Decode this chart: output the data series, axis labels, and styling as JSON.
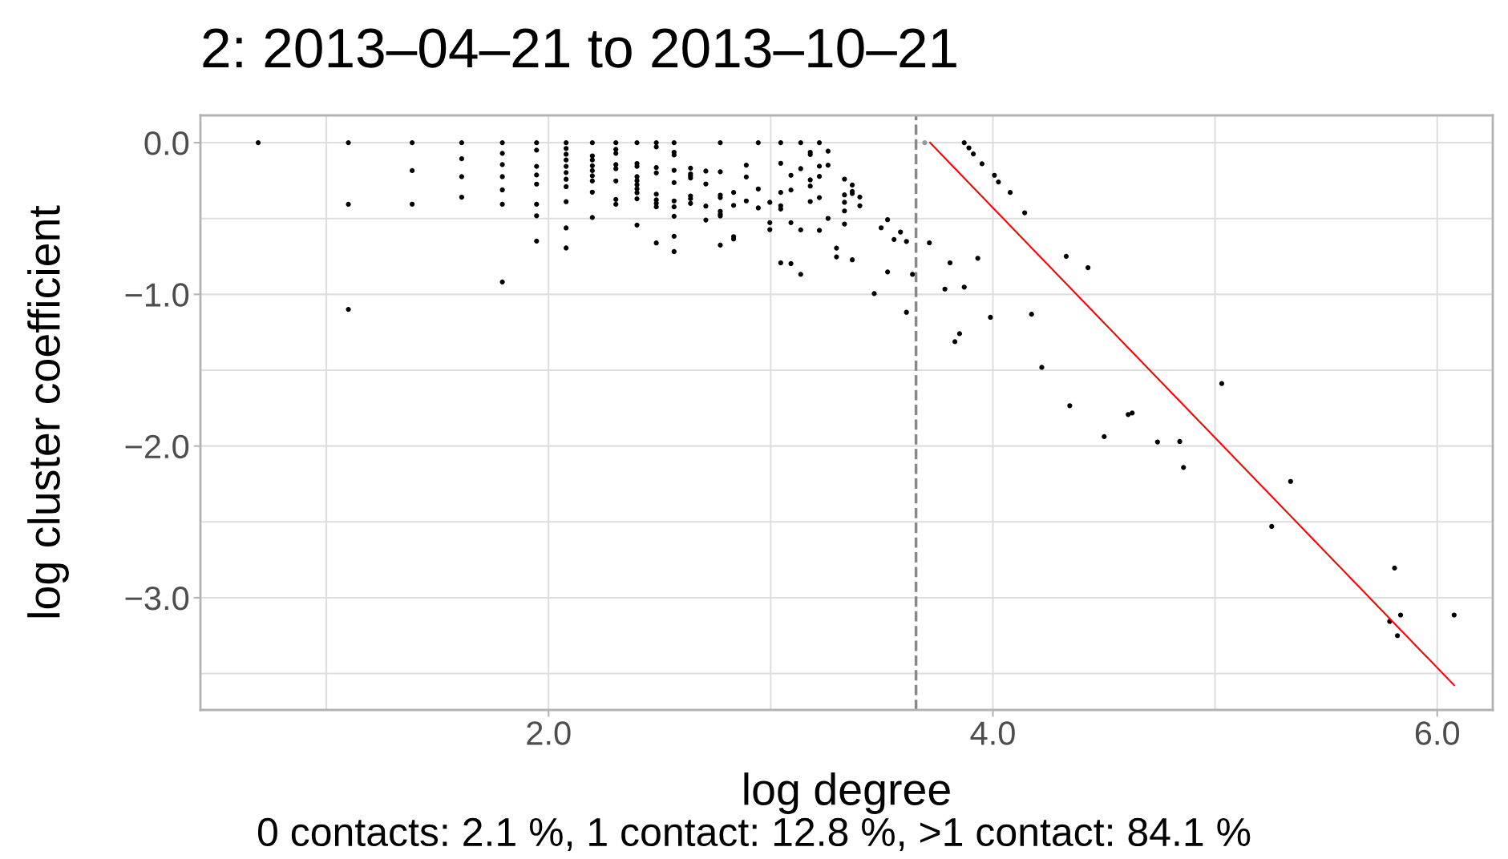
{
  "chart_data": {
    "type": "scatter",
    "title": "2: 2013–04–21 to 2013–10–21",
    "xlabel": "log degree",
    "ylabel": "log cluster coefficient",
    "annotations": [
      "0 contacts: 2.1 %, 1 contact: 12.8 %, >1 contact: 84.1 %"
    ],
    "xlim": [
      0.433,
      6.25
    ],
    "ylim": [
      -3.74,
      0.18
    ],
    "xticks": [
      {
        "value": 1,
        "label": null
      },
      {
        "value": 2,
        "label": "2.0"
      },
      {
        "value": 3,
        "label": null
      },
      {
        "value": 4,
        "label": "4.0"
      },
      {
        "value": 5,
        "label": null
      },
      {
        "value": 6,
        "label": "6.0"
      }
    ],
    "yticks": [
      {
        "value": -3.5,
        "label": null
      },
      {
        "value": -3,
        "label": "−3.0"
      },
      {
        "value": -2.5,
        "label": null
      },
      {
        "value": -2,
        "label": "−2.0"
      },
      {
        "value": -1.5,
        "label": null
      },
      {
        "value": -1,
        "label": "−1.0"
      },
      {
        "value": -0.5,
        "label": null
      },
      {
        "value": 0,
        "label": "0.0"
      }
    ],
    "grid": true,
    "ref_lines": [
      {
        "axis": "x",
        "value": 3.654,
        "label": null,
        "color": "#888888",
        "line_style": "dashed"
      }
    ],
    "series": [
      {
        "marker": "circle",
        "color": "#000000",
        "x": [
          0.693,
          1.099,
          1.099,
          1.099,
          1.386,
          1.386,
          1.386,
          1.609,
          1.609,
          1.609,
          1.609,
          1.792,
          1.792,
          1.792,
          1.792,
          1.792,
          1.792,
          1.792,
          1.946,
          1.946,
          1.946,
          1.946,
          1.946,
          1.946,
          1.946,
          1.946,
          2.079,
          2.079,
          2.079,
          2.079,
          2.079,
          2.079,
          2.079,
          2.079,
          2.079,
          2.079,
          2.079,
          2.197,
          2.197,
          2.197,
          2.197,
          2.197,
          2.197,
          2.197,
          2.197,
          2.197,
          2.303,
          2.303,
          2.303,
          2.303,
          2.303,
          2.303,
          2.303,
          2.303,
          2.398,
          2.398,
          2.398,
          2.398,
          2.398,
          2.398,
          2.398,
          2.398,
          2.398,
          2.398,
          2.485,
          2.485,
          2.485,
          2.485,
          2.485,
          2.485,
          2.485,
          2.485,
          2.485,
          2.565,
          2.565,
          2.565,
          2.565,
          2.565,
          2.565,
          2.565,
          2.565,
          2.565,
          2.565,
          2.639,
          2.639,
          2.639,
          2.639,
          2.639,
          2.639,
          2.639,
          2.708,
          2.708,
          2.708,
          2.708,
          2.773,
          2.773,
          2.773,
          2.773,
          2.773,
          2.773,
          2.773,
          2.773,
          2.833,
          2.833,
          2.833,
          2.833,
          2.89,
          2.89,
          2.89,
          2.944,
          2.944,
          2.944,
          2.996,
          2.996,
          2.996,
          3.045,
          3.045,
          3.045,
          3.045,
          3.045,
          3.045,
          3.091,
          3.091,
          3.091,
          3.091,
          3.135,
          3.135,
          3.135,
          3.135,
          3.178,
          3.178,
          3.178,
          3.178,
          3.178,
          3.219,
          3.219,
          3.219,
          3.219,
          3.219,
          3.258,
          3.258,
          3.258,
          3.296,
          3.296,
          3.332,
          3.332,
          3.332,
          3.332,
          3.332,
          3.367,
          3.367,
          3.367,
          3.367,
          3.401,
          3.401,
          3.466,
          3.497,
          3.526,
          3.526,
          3.555,
          3.584,
          3.611,
          3.611,
          3.638,
          3.714,
          3.784,
          3.807,
          3.829,
          3.85,
          3.871,
          3.871,
          3.892,
          3.912,
          3.932,
          3.951,
          3.989,
          4.007,
          4.025,
          4.078,
          4.143,
          4.174,
          4.22,
          4.33,
          4.346,
          4.428,
          4.501,
          4.609,
          4.627,
          4.741,
          4.841,
          4.858,
          5.03,
          5.255,
          5.34,
          5.786,
          5.808,
          5.821,
          5.835,
          6.076
        ],
        "values": [
          0,
          0,
          -0.406,
          -1.099,
          0,
          -0.184,
          -0.405,
          0,
          -0.106,
          -0.224,
          -0.359,
          0,
          -0.07,
          -0.144,
          -0.224,
          -0.311,
          -0.406,
          -0.918,
          0,
          -0.049,
          -0.156,
          -0.213,
          -0.273,
          -0.406,
          -0.482,
          -0.649,
          0,
          -0.038,
          -0.076,
          -0.114,
          -0.156,
          -0.197,
          -0.241,
          -0.29,
          -0.389,
          -0.562,
          -0.694,
          0,
          -0.087,
          -0.114,
          -0.152,
          -0.184,
          -0.218,
          -0.252,
          -0.326,
          -0.493,
          0,
          -0.044,
          -0.07,
          -0.144,
          -0.171,
          -0.252,
          -0.374,
          -0.406,
          0,
          -0.137,
          -0.156,
          -0.224,
          -0.25,
          -0.277,
          -0.304,
          -0.33,
          -0.37,
          -0.543,
          0,
          -0.028,
          -0.164,
          -0.199,
          -0.339,
          -0.377,
          -0.4,
          -0.423,
          -0.661,
          0,
          -0.063,
          -0.081,
          -0.182,
          -0.263,
          -0.384,
          -0.423,
          -0.485,
          -0.617,
          -0.718,
          -0.168,
          -0.206,
          -0.219,
          -0.233,
          -0.351,
          -0.369,
          -0.4,
          -0.187,
          -0.272,
          -0.418,
          -0.51,
          0,
          -0.192,
          -0.346,
          -0.362,
          -0.453,
          -0.471,
          -0.483,
          -0.675,
          -0.328,
          -0.413,
          -0.619,
          -0.635,
          -0.148,
          -0.226,
          -0.384,
          0,
          -0.305,
          -0.43,
          -0.393,
          -0.527,
          -0.573,
          0,
          -0.136,
          -0.328,
          -0.416,
          -0.437,
          -0.792,
          -0.215,
          -0.312,
          -0.527,
          -0.797,
          0,
          -0.171,
          -0.575,
          -0.868,
          -0.063,
          -0.078,
          -0.245,
          -0.286,
          -0.388,
          0,
          -0.155,
          -0.222,
          -0.362,
          -0.578,
          -0.056,
          -0.148,
          -0.499,
          -0.695,
          -0.753,
          -0.24,
          -0.344,
          -0.393,
          -0.45,
          -0.536,
          -0.279,
          -0.321,
          -0.335,
          -0.772,
          -0.358,
          -0.416,
          -0.995,
          -0.561,
          -0.508,
          -0.852,
          -0.638,
          -0.589,
          -0.651,
          -1.118,
          -0.868,
          -0.66,
          -0.965,
          -0.792,
          -1.312,
          -1.259,
          0,
          -0.952,
          -0.034,
          -0.074,
          -0.762,
          -0.139,
          -1.151,
          -0.215,
          -0.259,
          -0.328,
          -0.462,
          -1.131,
          -1.481,
          -0.749,
          -1.734,
          -0.824,
          -1.938,
          -1.792,
          -1.782,
          -1.973,
          -1.97,
          -2.141,
          -1.588,
          -2.53,
          -2.233,
          -3.156,
          -2.804,
          -3.25,
          -3.114,
          -3.114
        ]
      },
      {
        "marker": "circle",
        "color": "#999999",
        "x": [
          3.693
        ],
        "values": [
          0
        ]
      },
      {
        "type": "line",
        "marker": "none",
        "color": "#ff0000",
        "x": [
          3.717,
          6.076
        ],
        "values": [
          0.0,
          -3.577
        ]
      }
    ]
  }
}
